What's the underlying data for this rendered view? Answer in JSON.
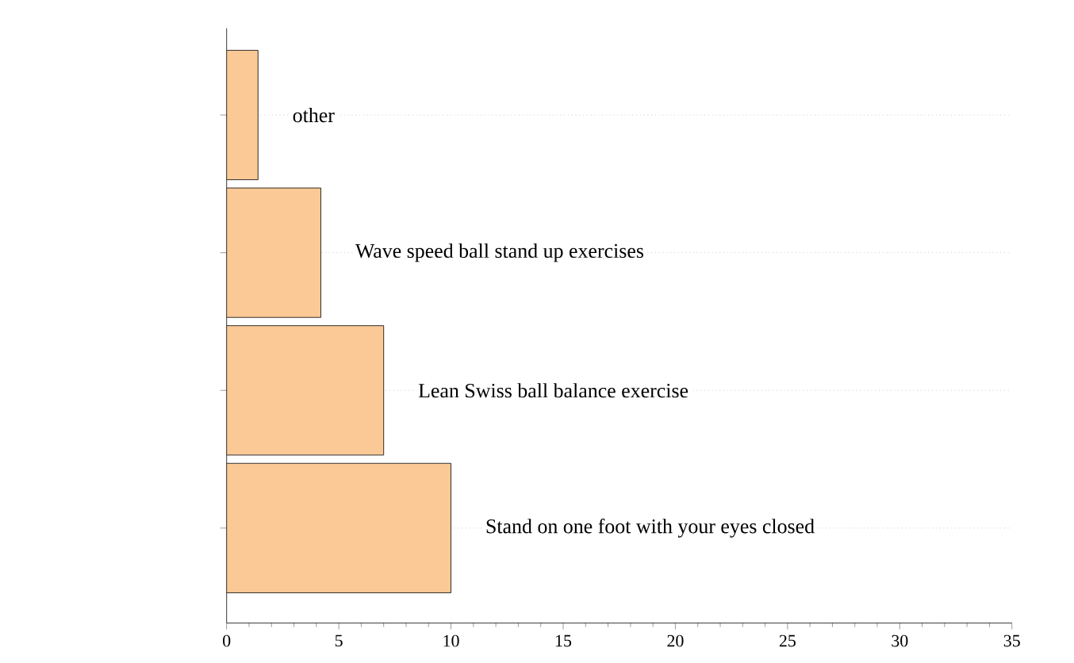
{
  "chart_data": {
    "type": "bar",
    "orientation": "horizontal",
    "categories": [
      "other",
      "Wave speed ball stand up exercises",
      "Lean Swiss ball balance exercise",
      "Stand on one foot with your eyes closed"
    ],
    "values": [
      1.4,
      4.2,
      7,
      10
    ],
    "color": "#fbc995",
    "xlim": [
      0,
      35
    ],
    "xticks": [
      0,
      5,
      10,
      15,
      20,
      25,
      30,
      35
    ],
    "grid": "y",
    "tick_labels": "x"
  }
}
